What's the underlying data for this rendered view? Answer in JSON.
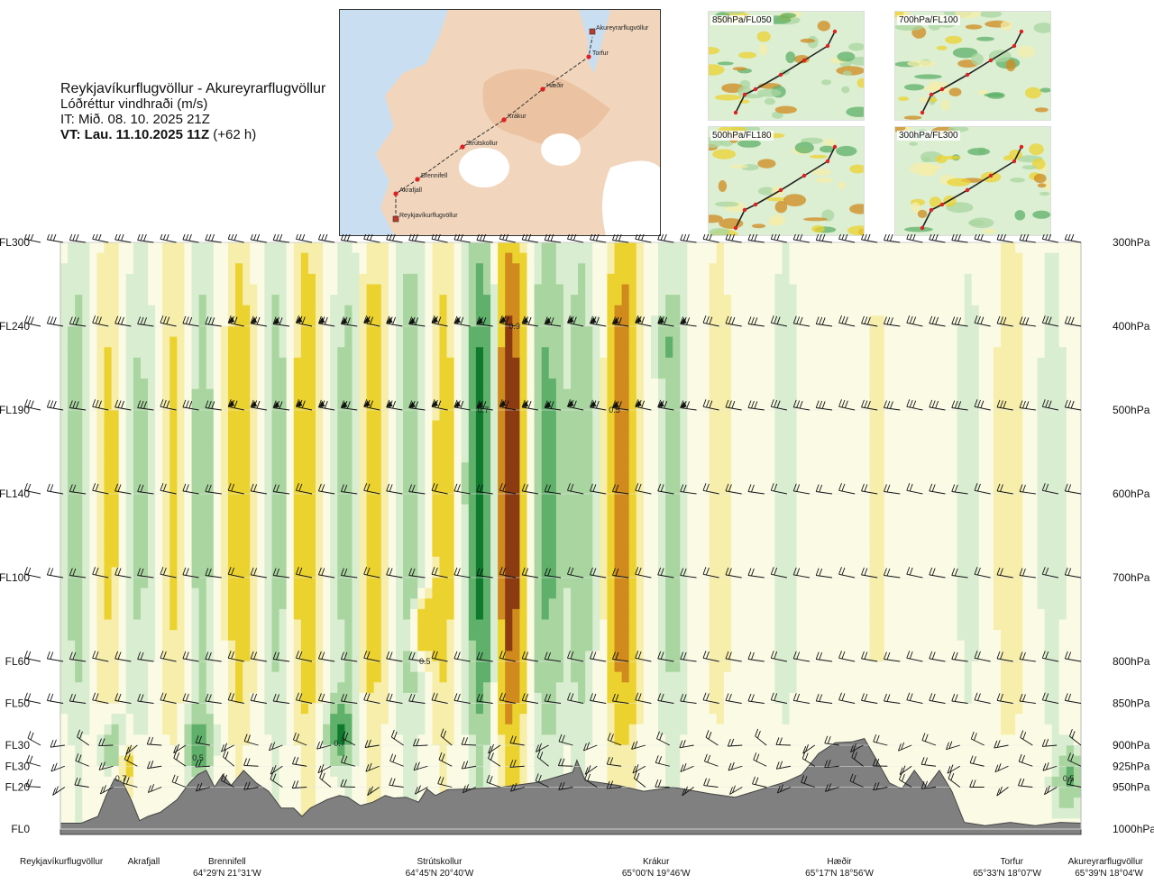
{
  "header": {
    "route": "Reykjavíkurflugvöllur - Akureyrarflugvöllur",
    "quantity": "Lóðréttur vindhraði (m/s)",
    "issue_time": "IT: Mið. 08. 10. 2025 21Z",
    "valid_time_lead": "VT: Lau. 11.10.2025 11Z",
    "valid_time_offset": "(+62 h)"
  },
  "map": {
    "waypoints": [
      {
        "name": "Akureyrarflugvöllur",
        "airport": true
      },
      {
        "name": "Torfur"
      },
      {
        "name": "Hæðir"
      },
      {
        "name": "Krákur"
      },
      {
        "name": "Strútskollur"
      },
      {
        "name": "Brennifell"
      },
      {
        "name": "Akrafjall"
      },
      {
        "name": "Reykjavíkurflugvöllur",
        "airport": true
      }
    ]
  },
  "thumbnails": [
    {
      "label": "850hPa/FL050"
    },
    {
      "label": "700hPa/FL100"
    },
    {
      "label": "500hPa/FL180"
    },
    {
      "label": "300hPa/FL300"
    }
  ],
  "colors": {
    "down_strong": "#8b3a12",
    "down_mid": "#d08a1d",
    "down_weak": "#ecd22f",
    "down_faint": "#f6eeaa",
    "neutral": "#fbfbe5",
    "up_faint": "#d9edd0",
    "up_weak": "#a9d5a0",
    "up_mid": "#5fb06a",
    "up_strong": "#0f7a2e",
    "terrain": "#808080"
  },
  "chart_data": {
    "type": "heatmap",
    "title": "Lóðréttur vindhraði (m/s)",
    "x_stations": [
      {
        "name": "Reykjavíkurflugvöllur",
        "coord": ""
      },
      {
        "name": "Akrafjall",
        "coord": ""
      },
      {
        "name": "Brennifell",
        "coord": "64°29'N 21°31'W"
      },
      {
        "name": "Strútskollur",
        "coord": "64°45'N 20°40'W"
      },
      {
        "name": "Krákur",
        "coord": "65°00'N 19°46'W"
      },
      {
        "name": "Hæðir",
        "coord": "65°17'N 18°56'W"
      },
      {
        "name": "Torfur",
        "coord": "65°33'N 18°07'W"
      },
      {
        "name": "Akureyrarflugvöllur",
        "coord": "65°39'N 18°04'W"
      }
    ],
    "station_distance_km": [
      0,
      20,
      40,
      91,
      143,
      187,
      232,
      245
    ],
    "x_range_km": [
      0,
      245
    ],
    "levels": [
      {
        "fl": "FL300",
        "hpa": "300hPa",
        "p": 300
      },
      {
        "fl": "FL240",
        "hpa": "400hPa",
        "p": 400
      },
      {
        "fl": "FL190",
        "hpa": "500hPa",
        "p": 500
      },
      {
        "fl": "FL140",
        "hpa": "600hPa",
        "p": 600
      },
      {
        "fl": "FL100",
        "hpa": "700hPa",
        "p": 700
      },
      {
        "fl": "FL60",
        "hpa": "800hPa",
        "p": 800
      },
      {
        "fl": "FL50",
        "hpa": "850hPa",
        "p": 850
      },
      {
        "fl": "FL30",
        "hpa": "900hPa",
        "p": 900
      },
      {
        "fl": "FL30",
        "hpa": "925hPa",
        "p": 925
      },
      {
        "fl": "FL20",
        "hpa": "950hPa",
        "p": 950
      },
      {
        "fl": "FL0",
        "hpa": "1000hPa",
        "p": 1000
      }
    ],
    "y_range_hpa": [
      300,
      1000
    ],
    "bands": [
      {
        "x": 4,
        "v": 0.3
      },
      {
        "x": 12,
        "v": -0.25
      },
      {
        "x": 19,
        "v": 0.25
      },
      {
        "x": 27,
        "v": -0.25
      },
      {
        "x": 34,
        "v": 0.3
      },
      {
        "x": 43,
        "v": -0.35
      },
      {
        "x": 52,
        "v": 0.3
      },
      {
        "x": 59,
        "v": -0.4
      },
      {
        "x": 69,
        "v": 0.3
      },
      {
        "x": 75,
        "v": -0.35
      },
      {
        "x": 84,
        "v": 0.35
      },
      {
        "x": 92,
        "v": -0.3
      },
      {
        "x": 101,
        "v": 0.85
      },
      {
        "x": 108,
        "v": -0.95
      },
      {
        "x": 117,
        "v": 0.55
      },
      {
        "x": 125,
        "v": 0.35
      },
      {
        "x": 135,
        "v": -0.7
      },
      {
        "x": 147,
        "v": 0.3
      },
      {
        "x": 158,
        "v": -0.15
      },
      {
        "x": 174,
        "v": 0.15
      },
      {
        "x": 196,
        "v": -0.1
      },
      {
        "x": 218,
        "v": 0.12
      },
      {
        "x": 228,
        "v": -0.2
      },
      {
        "x": 238,
        "v": 0.15
      }
    ],
    "blobs": [
      {
        "x": 13,
        "p": 905,
        "v": 0.7
      },
      {
        "x": 15,
        "p": 920,
        "v": -0.5
      },
      {
        "x": 33,
        "p": 900,
        "v": 0.6
      },
      {
        "x": 67,
        "p": 885,
        "v": 0.7
      },
      {
        "x": 87,
        "p": 760,
        "v": -0.5
      },
      {
        "x": 242,
        "p": 940,
        "v": 0.5
      },
      {
        "x": 146,
        "p": 420,
        "v": 0.25
      }
    ],
    "value_labels": [
      {
        "text": "0.7",
        "x": 14.5,
        "p": 940
      },
      {
        "text": "0.5",
        "x": 33,
        "p": 915
      },
      {
        "text": "0.7",
        "x": 67,
        "p": 898
      },
      {
        "text": "0.5",
        "x": 87.5,
        "p": 800
      },
      {
        "text": "0.7",
        "x": 101.5,
        "p": 500
      },
      {
        "text": "0.9",
        "x": 109,
        "p": 400
      },
      {
        "text": "0.5",
        "x": 133,
        "p": 500
      },
      {
        "text": "0.5",
        "x": 242,
        "p": 940
      }
    ],
    "terrain_hpa": [
      [
        0,
        993
      ],
      [
        5,
        993
      ],
      [
        9,
        985
      ],
      [
        11,
        960
      ],
      [
        13,
        940
      ],
      [
        15,
        945
      ],
      [
        17,
        965
      ],
      [
        19,
        990
      ],
      [
        21,
        985
      ],
      [
        24,
        980
      ],
      [
        28,
        965
      ],
      [
        31,
        945
      ],
      [
        33,
        935
      ],
      [
        35,
        930
      ],
      [
        37,
        950
      ],
      [
        39,
        935
      ],
      [
        41,
        948
      ],
      [
        44,
        930
      ],
      [
        47,
        945
      ],
      [
        50,
        955
      ],
      [
        53,
        975
      ],
      [
        56,
        975
      ],
      [
        58,
        985
      ],
      [
        60,
        975
      ],
      [
        64,
        965
      ],
      [
        67,
        960
      ],
      [
        69,
        962
      ],
      [
        72,
        972
      ],
      [
        75,
        968
      ],
      [
        78,
        960
      ],
      [
        80,
        963
      ],
      [
        83,
        962
      ],
      [
        86,
        968
      ],
      [
        88,
        952
      ],
      [
        90,
        960
      ],
      [
        93,
        953
      ],
      [
        99,
        952
      ],
      [
        106,
        950
      ],
      [
        115,
        944
      ],
      [
        123,
        932
      ],
      [
        124,
        918
      ],
      [
        126,
        942
      ],
      [
        134,
        948
      ],
      [
        140,
        955
      ],
      [
        147,
        950
      ],
      [
        156,
        958
      ],
      [
        162,
        962
      ],
      [
        170,
        950
      ],
      [
        174,
        944
      ],
      [
        178,
        935
      ],
      [
        182,
        910
      ],
      [
        186,
        897
      ],
      [
        190,
        896
      ],
      [
        193,
        892
      ],
      [
        196,
        918
      ],
      [
        199,
        945
      ],
      [
        202,
        952
      ],
      [
        205,
        930
      ],
      [
        208,
        950
      ],
      [
        211,
        930
      ],
      [
        214,
        955
      ],
      [
        217,
        992
      ],
      [
        222,
        996
      ],
      [
        228,
        992
      ],
      [
        234,
        996
      ],
      [
        240,
        992
      ],
      [
        245,
        993
      ]
    ],
    "wind_barbs_at_levels": [
      300,
      400,
      500,
      600,
      700,
      800,
      850,
      900,
      925,
      950
    ],
    "grid": false,
    "legend": "none"
  }
}
